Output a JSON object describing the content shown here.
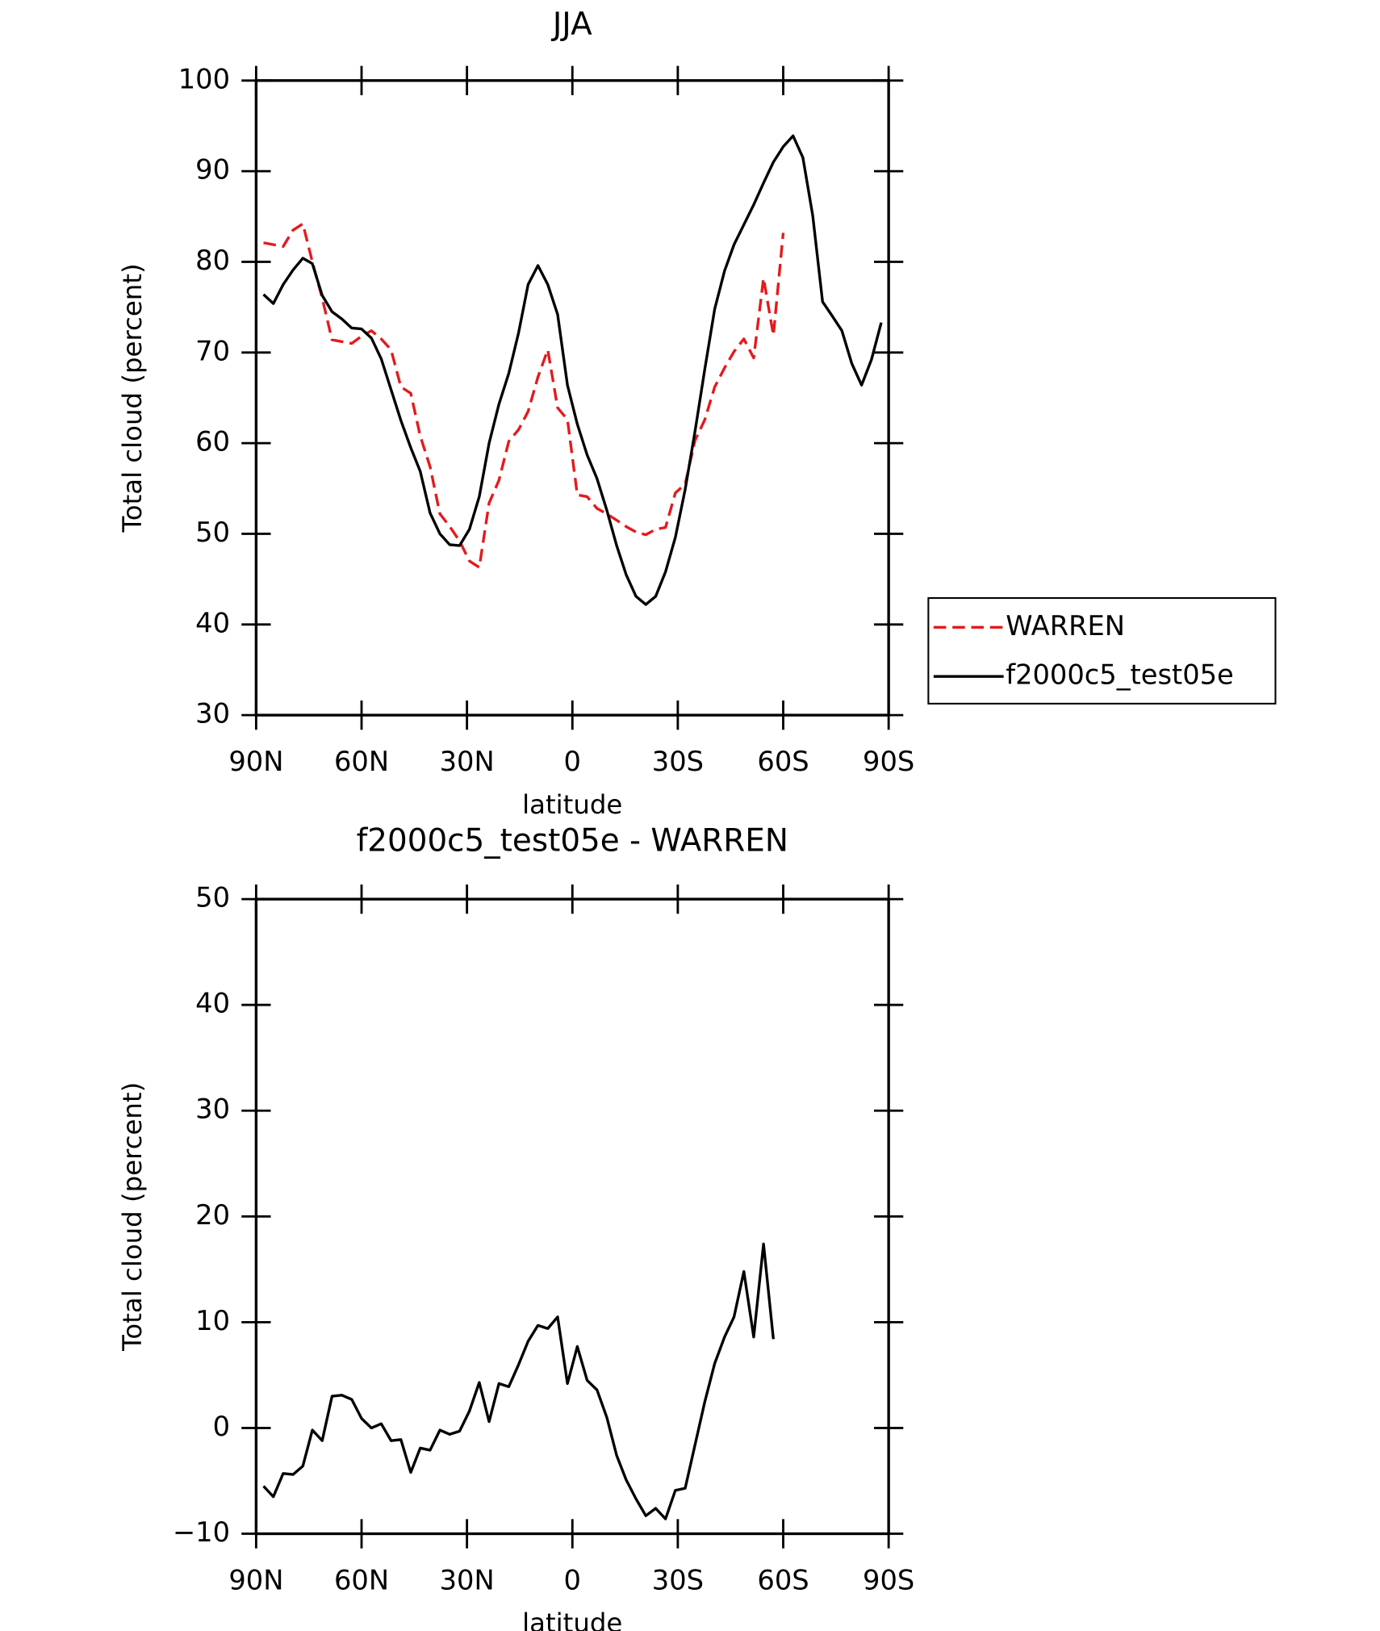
{
  "chart_data": [
    {
      "type": "line",
      "title": "JJA",
      "xlabel": "latitude",
      "ylabel": "Total cloud (percent)",
      "xlim": [
        90,
        -90
      ],
      "xticks": [
        {
          "value": 90,
          "label": "90N"
        },
        {
          "value": 60,
          "label": "60N"
        },
        {
          "value": 30,
          "label": "30N"
        },
        0,
        {
          "value": -30,
          "label": "30S"
        },
        {
          "value": -60,
          "label": "60S"
        },
        {
          "value": -90,
          "label": "90S"
        }
      ],
      "ylim": [
        30,
        100
      ],
      "yticks": [
        30,
        40,
        50,
        60,
        70,
        80,
        90,
        100
      ],
      "legend": "right",
      "x": [
        87.9,
        85.1,
        82.3,
        79.5,
        76.7,
        74.0,
        71.2,
        68.4,
        65.6,
        62.8,
        60.0,
        57.2,
        54.4,
        51.6,
        48.8,
        46.0,
        43.3,
        40.5,
        37.7,
        34.9,
        32.1,
        29.3,
        26.5,
        23.7,
        20.9,
        18.1,
        15.3,
        12.6,
        9.8,
        7.0,
        4.2,
        1.4,
        -1.4,
        -4.2,
        -7.0,
        -9.8,
        -12.6,
        -15.3,
        -18.1,
        -20.9,
        -23.7,
        -26.5,
        -29.3,
        -32.1,
        -34.9,
        -37.7,
        -40.5,
        -43.3,
        -46.0,
        -48.8,
        -51.6,
        -54.4,
        -57.2,
        -60.0,
        -62.8,
        -65.6,
        -68.4,
        -71.2,
        -74.0,
        -76.7,
        -79.5,
        -82.3,
        -85.1,
        -87.9
      ],
      "series": [
        {
          "name": "WARREN",
          "color": "#e41a1c",
          "line_style": "dashed",
          "values": [
            82.1,
            81.9,
            81.7,
            83.5,
            84.2,
            80.0,
            76.0,
            71.4,
            71.2,
            71.0,
            71.8,
            72.4,
            71.5,
            70.3,
            66.2,
            65.5,
            60.8,
            57.4,
            52.2,
            50.8,
            49.2,
            47.0,
            46.3,
            53.4,
            55.9,
            60.2,
            61.5,
            63.5,
            67.3,
            70.3,
            63.9,
            62.6,
            54.3,
            54.1,
            52.8,
            52.2,
            51.5,
            50.8,
            50.2,
            49.9,
            50.5,
            50.7,
            54.5,
            55.5,
            60.3,
            62.6,
            66.2,
            68.3,
            70.1,
            71.5,
            69.4,
            78.2,
            71.9,
            83.2,
            null,
            null,
            null,
            null,
            null,
            null,
            null,
            null,
            null,
            null
          ]
        },
        {
          "name": "f2000c5_test05e",
          "color": "#000000",
          "line_style": "solid",
          "values": [
            76.4,
            75.4,
            77.5,
            79.1,
            80.4,
            79.8,
            76.3,
            74.5,
            73.7,
            72.7,
            72.6,
            71.6,
            69.3,
            65.9,
            62.5,
            59.5,
            56.9,
            52.3,
            50.0,
            48.8,
            48.7,
            50.5,
            54.1,
            60.0,
            64.3,
            67.7,
            72.2,
            77.5,
            79.6,
            77.5,
            74.2,
            66.4,
            62.1,
            58.7,
            56.1,
            52.6,
            48.7,
            45.5,
            43.1,
            42.2,
            43.1,
            45.8,
            49.6,
            54.9,
            61.3,
            68.2,
            74.8,
            79.0,
            81.9,
            84.1,
            86.3,
            88.7,
            91.0,
            92.7,
            93.9,
            91.5,
            85.1,
            75.6,
            74.0,
            72.4,
            68.8,
            66.4,
            69.2,
            73.3
          ]
        }
      ]
    },
    {
      "type": "line",
      "title": "f2000c5_test05e - WARREN",
      "xlabel": "latitude",
      "ylabel": "Total cloud (percent)",
      "xlim": [
        90,
        -90
      ],
      "xticks": [
        {
          "value": 90,
          "label": "90N"
        },
        {
          "value": 60,
          "label": "60N"
        },
        {
          "value": 30,
          "label": "30N"
        },
        0,
        {
          "value": -30,
          "label": "30S"
        },
        {
          "value": -60,
          "label": "60S"
        },
        {
          "value": -90,
          "label": "90S"
        }
      ],
      "ylim": [
        -10,
        50
      ],
      "yticks": [
        {
          "value": -10,
          "label": "−10"
        },
        0,
        10,
        20,
        30,
        40,
        50
      ],
      "x": [
        87.9,
        85.1,
        82.3,
        79.5,
        76.7,
        74.0,
        71.2,
        68.4,
        65.6,
        62.8,
        60.0,
        57.2,
        54.4,
        51.6,
        48.8,
        46.0,
        43.3,
        40.5,
        37.7,
        34.9,
        32.1,
        29.3,
        26.5,
        23.7,
        20.9,
        18.1,
        15.3,
        12.6,
        9.8,
        7.0,
        4.2,
        1.4,
        -1.4,
        -4.2,
        -7.0,
        -9.8,
        -12.6,
        -15.3,
        -18.1,
        -20.9,
        -23.7,
        -26.5,
        -29.3,
        -32.1,
        -34.9,
        -37.7,
        -40.5,
        -43.3,
        -46.0,
        -48.8,
        -51.6,
        -54.4,
        -57.2,
        -60.0,
        -62.8,
        -65.6,
        -68.4,
        -71.2,
        -74.0,
        -76.7,
        -79.5,
        -82.3,
        -85.1,
        -87.9
      ],
      "series": [
        {
          "color": "#000000",
          "line_style": "solid",
          "values": [
            -5.5,
            -6.5,
            -4.3,
            -4.4,
            -3.6,
            -0.2,
            -1.2,
            3.0,
            3.1,
            2.7,
            0.9,
            0.0,
            0.4,
            -1.2,
            -1.1,
            -4.2,
            -1.9,
            -2.1,
            -0.2,
            -0.6,
            -0.3,
            1.6,
            4.3,
            0.6,
            4.2,
            3.9,
            6.0,
            8.2,
            9.7,
            9.4,
            10.5,
            4.2,
            7.7,
            4.5,
            3.6,
            1.0,
            -2.6,
            -4.9,
            -6.7,
            -8.3,
            -7.6,
            -8.6,
            -5.9,
            -5.7,
            -1.6,
            2.5,
            6.1,
            8.6,
            10.5,
            14.8,
            8.6,
            17.4,
            8.4,
            null,
            null,
            null,
            null,
            null,
            null,
            null,
            null,
            null,
            null,
            null
          ]
        }
      ]
    }
  ]
}
